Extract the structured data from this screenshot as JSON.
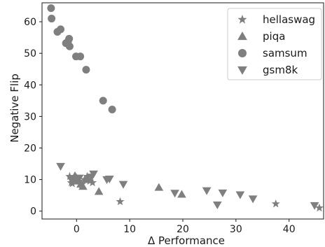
{
  "chart_data": {
    "type": "scatter",
    "xlabel": "Δ Performance",
    "ylabel": "Negative Flip",
    "xlim": [
      -6.5,
      46.5
    ],
    "ylim": [
      -2.5,
      66
    ],
    "x_ticks": [
      0,
      10,
      20,
      30,
      40
    ],
    "y_ticks": [
      0,
      10,
      20,
      30,
      40,
      50,
      60
    ],
    "grid": false,
    "legend_position": "top-right",
    "marker_color": "#7f7f7f",
    "series": [
      {
        "name": "hellaswag",
        "marker": "star",
        "points": [
          {
            "x": -1.3,
            "y": 11.0
          },
          {
            "x": -1.0,
            "y": 9.0
          },
          {
            "x": -0.5,
            "y": 10.0
          },
          {
            "x": 0.0,
            "y": 10.5
          },
          {
            "x": 0.5,
            "y": 9.5
          },
          {
            "x": 1.0,
            "y": 8.5
          },
          {
            "x": 1.5,
            "y": 10.0
          },
          {
            "x": 2.0,
            "y": 11.0
          },
          {
            "x": 2.5,
            "y": 9.5
          },
          {
            "x": 3.0,
            "y": 9.0
          },
          {
            "x": -0.8,
            "y": 8.7
          },
          {
            "x": 8.2,
            "y": 3.0
          },
          {
            "x": 37.5,
            "y": 2.3
          },
          {
            "x": 45.7,
            "y": 1.0
          }
        ]
      },
      {
        "name": "piqa",
        "marker": "triangle-up",
        "points": [
          {
            "x": -0.3,
            "y": 11.2
          },
          {
            "x": 0.8,
            "y": 8.5
          },
          {
            "x": 0.2,
            "y": 9.5
          },
          {
            "x": 1.2,
            "y": 7.8
          },
          {
            "x": 2.0,
            "y": 10.0
          },
          {
            "x": 4.2,
            "y": 6.2
          },
          {
            "x": 15.5,
            "y": 7.5
          },
          {
            "x": 19.8,
            "y": 5.3
          }
        ]
      },
      {
        "name": "samsum",
        "marker": "circle",
        "points": [
          {
            "x": -4.8,
            "y": 64.3
          },
          {
            "x": -4.7,
            "y": 61.0
          },
          {
            "x": -3.6,
            "y": 56.8
          },
          {
            "x": -3.0,
            "y": 57.6
          },
          {
            "x": -2.0,
            "y": 53.2
          },
          {
            "x": -1.4,
            "y": 54.6
          },
          {
            "x": -1.3,
            "y": 52.2
          },
          {
            "x": -1.6,
            "y": 53.8
          },
          {
            "x": -0.1,
            "y": 49.0
          },
          {
            "x": 0.7,
            "y": 49.0
          },
          {
            "x": 1.8,
            "y": 44.8
          },
          {
            "x": 5.0,
            "y": 35.0
          },
          {
            "x": 6.7,
            "y": 32.2
          }
        ]
      },
      {
        "name": "gsm8k",
        "marker": "triangle-down",
        "points": [
          {
            "x": -3.0,
            "y": 14.2
          },
          {
            "x": -1.0,
            "y": 10.0
          },
          {
            "x": 0.5,
            "y": 10.5
          },
          {
            "x": 2.8,
            "y": 10.8
          },
          {
            "x": 3.2,
            "y": 11.8
          },
          {
            "x": 5.7,
            "y": 10.0
          },
          {
            "x": 6.2,
            "y": 10.2
          },
          {
            "x": 8.8,
            "y": 8.5
          },
          {
            "x": 18.5,
            "y": 5.7
          },
          {
            "x": 24.5,
            "y": 6.5
          },
          {
            "x": 26.5,
            "y": 2.0
          },
          {
            "x": 27.5,
            "y": 5.8
          },
          {
            "x": 30.8,
            "y": 5.2
          },
          {
            "x": 33.2,
            "y": 3.9
          },
          {
            "x": 44.8,
            "y": 1.8
          }
        ]
      }
    ]
  }
}
